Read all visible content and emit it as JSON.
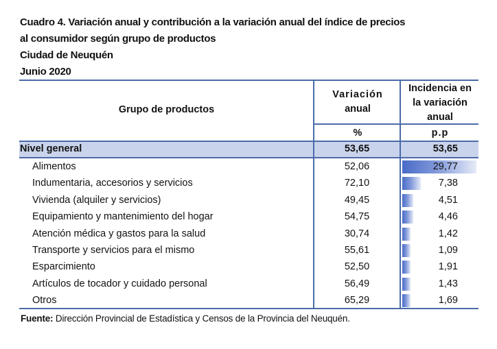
{
  "title": {
    "line1": "Cuadro 4. Variación anual y contribución a la variación anual del índice de precios",
    "line2": "al consumidor según grupo de productos",
    "line3": "Ciudad de Neuquén",
    "line4": "Junio 2020"
  },
  "table": {
    "headers": {
      "group": "Grupo de productos",
      "variation": [
        "Variación",
        "anual"
      ],
      "incidence": [
        "Incidencia en",
        "la variación",
        "anual"
      ],
      "variation_unit": "%",
      "incidence_unit": "p.p"
    },
    "total": {
      "label": "Nivel general",
      "variation": "53,65",
      "incidence": "53,65"
    },
    "rows": [
      {
        "label": "Alimentos",
        "variation": "52,06",
        "incidence": "29,77",
        "incidence_value": 29.77
      },
      {
        "label": "Indumentaria, accesorios y servicios",
        "variation": "72,10",
        "incidence": "7,38",
        "incidence_value": 7.38
      },
      {
        "label": "Vivienda (alquiler y servicios)",
        "variation": "49,45",
        "incidence": "4,51",
        "incidence_value": 4.51
      },
      {
        "label": "Equipamiento y mantenimiento del hogar",
        "variation": "54,75",
        "incidence": "4,46",
        "incidence_value": 4.46
      },
      {
        "label": "Atención médica y gastos para la salud",
        "variation": "30,74",
        "incidence": "1,42",
        "incidence_value": 1.42
      },
      {
        "label": "Transporte y servicios para el mismo",
        "variation": "55,61",
        "incidence": "1,09",
        "incidence_value": 1.09
      },
      {
        "label": "Esparcimiento",
        "variation": "52,50",
        "incidence": "1,91",
        "incidence_value": 1.91
      },
      {
        "label": "Artículos de tocador y cuidado personal",
        "variation": "56,49",
        "incidence": "1,43",
        "incidence_value": 1.43
      },
      {
        "label": "Otros",
        "variation": "65,29",
        "incidence": "1,69",
        "incidence_value": 1.69
      }
    ]
  },
  "source": {
    "label": "Fuente:",
    "text": " Dirección Provincial de Estadística y Censos de la Provincia del Neuquén."
  }
}
